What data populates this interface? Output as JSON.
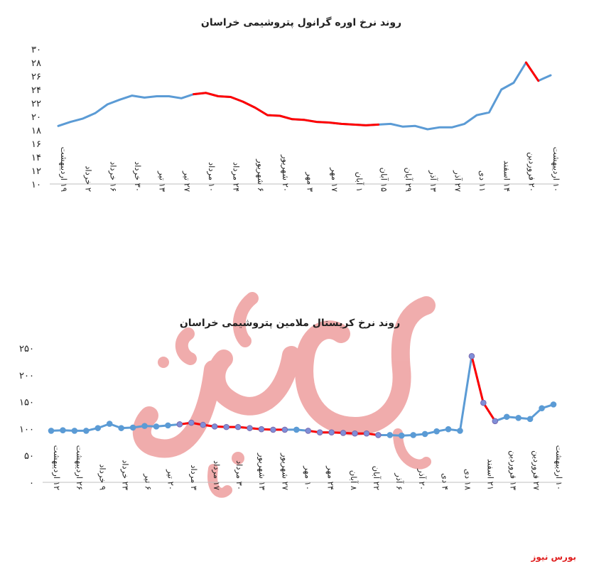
{
  "brand": {
    "footer_text": "بورس نیوز",
    "accent": "#e02020"
  },
  "colors": {
    "series": "#5b9bd5",
    "highlight": "#ff0000",
    "marker_outline": "#7a6ab0",
    "axis": "#bfbfbf"
  },
  "chart_data": [
    {
      "type": "line",
      "title": "روند نرخ اوره گرانول پتروشیمی خراسان",
      "y_tick_labels": [
        "۱۰",
        "۱۲",
        "۱۴",
        "۱۶",
        "۱۸",
        "۲۰",
        "۲۲",
        "۲۴",
        "۲۶",
        "۲۸",
        "۳۰"
      ],
      "ylim": [
        10,
        30
      ],
      "x_tick_labels": [
        "۱۹ اردیبهشت",
        "۲ خرداد",
        "۱۶ خرداد",
        "۳۰ خرداد",
        "۱۳ تیر",
        "۲۷ تیر",
        "۱۰ مرداد",
        "۲۴ مرداد",
        "۶ شهریور",
        "۲۰ شهریور",
        "۳ مهر",
        "۱۷ مهر",
        "۱ آبان",
        "۱۵ آبان",
        "۲۹ آبان",
        "۱۳ آذر",
        "۲۷ آذر",
        "۱۱ دی",
        "۱۴ اسفند",
        "۲۰ فروردین",
        "۱۰ اردیبهشت"
      ],
      "values": [
        18.6,
        19.2,
        19.7,
        20.5,
        21.8,
        22.5,
        23.1,
        22.8,
        23.0,
        23.0,
        22.7,
        23.3,
        23.5,
        23.0,
        22.9,
        22.2,
        21.3,
        20.2,
        20.1,
        19.6,
        19.5,
        19.2,
        19.1,
        18.9,
        18.8,
        18.7,
        18.8,
        18.9,
        18.5,
        18.6,
        18.1,
        18.4,
        18.4,
        18.9,
        20.2,
        20.6,
        24.0,
        25.0,
        28.0,
        25.3,
        26.1
      ],
      "series": [
        {
          "name": "",
          "color": "#5b9bd5"
        },
        {
          "name": "",
          "color": "#ff0000",
          "segments": [
            [
              11,
              26
            ],
            [
              38,
              39
            ]
          ]
        }
      ],
      "markers": false,
      "grid": false
    },
    {
      "type": "line",
      "title": "روند نرخ کریستال ملامین پتروشیمی خراسان",
      "y_tick_labels": [
        "۰",
        "۵۰",
        "۱۰۰",
        "۱۵۰",
        "۲۰۰",
        "۲۵۰"
      ],
      "ylim": [
        0,
        250
      ],
      "x_tick_labels": [
        "۱۲ اردیبهشت",
        "۲۶ اردیبهشت",
        "۹ خرداد",
        "۲۳ خرداد",
        "۶ تیر",
        "۲۰ تیر",
        "۳ مرداد",
        "۱۷ مرداد",
        "۳۰ مرداد",
        "۱۳ شهریور",
        "۲۷ شهریور",
        "۱۰ مهر",
        "۲۴ مهر",
        "۸ آبان",
        "۲۲ آبان",
        "۶ آذر",
        "۲۰ آذر",
        "۴ دی",
        "۱۸ دی",
        "۲۱ اسفند",
        "۱۳ فروردین",
        "۲۷ فروردین",
        "۱۰ اردیبهشت"
      ],
      "values": [
        96,
        97,
        96,
        96,
        101,
        109,
        101,
        102,
        105,
        104,
        106,
        108,
        111,
        107,
        104,
        103,
        103,
        101,
        99,
        98,
        98,
        98,
        96,
        93,
        93,
        92,
        91,
        91,
        88,
        88,
        87,
        88,
        90,
        95,
        99,
        96,
        235,
        148,
        114,
        122,
        120,
        118,
        138,
        145
      ],
      "series": [
        {
          "name": "",
          "color": "#5b9bd5"
        },
        {
          "name": "",
          "color": "#ff0000",
          "segments": [
            [
              11,
              20
            ],
            [
              22,
              28
            ],
            [
              36,
              38
            ]
          ]
        }
      ],
      "markers": true,
      "grid": false
    }
  ]
}
